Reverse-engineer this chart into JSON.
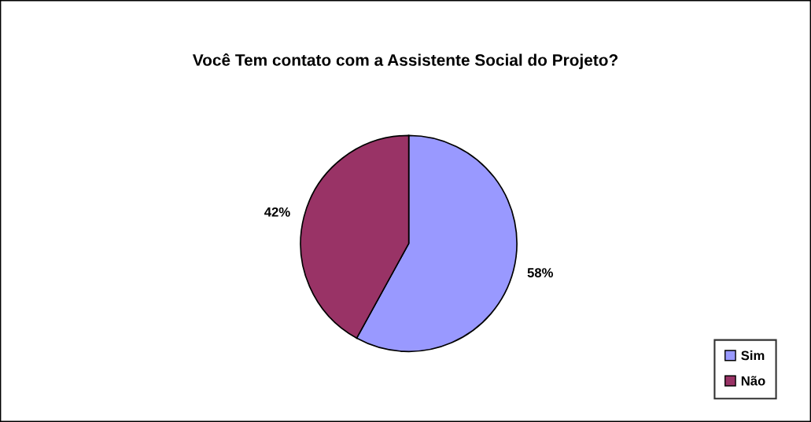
{
  "chart_data": {
    "type": "pie",
    "title": "Você Tem contato com a Assistente Social do Projeto?",
    "categories": [
      "Sim",
      "Não"
    ],
    "values": [
      58,
      42
    ],
    "colors": [
      "#9999ff",
      "#993366"
    ],
    "value_labels": [
      "58%",
      "42%"
    ],
    "legend": "bottom right"
  }
}
